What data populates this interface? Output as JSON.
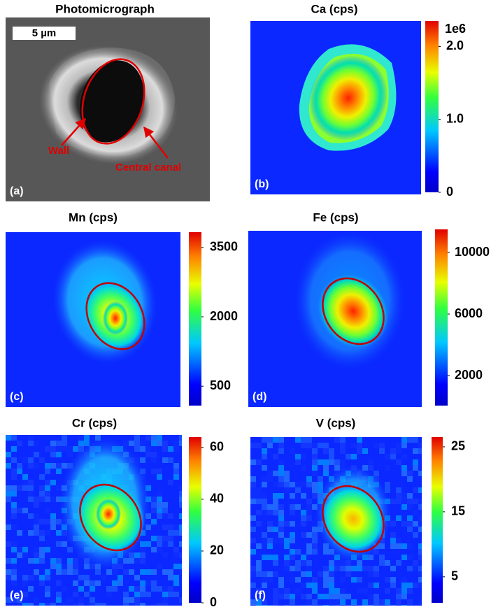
{
  "panels": [
    {
      "title": "Photomicrograph",
      "label": "(a)",
      "scale_bar": "5 µm",
      "annotations": [
        "Wall",
        "Central canal"
      ]
    },
    {
      "title": "Ca (cps)",
      "label": "(b)",
      "colorbar": {
        "exponent": "1e6",
        "lim": [
          0,
          2.35
        ],
        "ticks": [
          0,
          {
            "value": 1,
            "label": "1.0"
          },
          {
            "value": 2,
            "label": "2.0"
          }
        ]
      }
    },
    {
      "title": "Mn (cps)",
      "label": "(c)",
      "colorbar": {
        "lim": [
          80,
          3830
        ],
        "ticks": [
          500,
          2000,
          3500
        ]
      }
    },
    {
      "title": "Fe (cps)",
      "label": "(d)",
      "colorbar": {
        "lim": [
          50,
          11500
        ],
        "ticks": [
          2000,
          6000,
          10000
        ]
      }
    },
    {
      "title": "Cr (cps)",
      "label": "(e)",
      "colorbar": {
        "lim": [
          0,
          64
        ],
        "ticks": [
          0,
          20,
          40,
          60
        ]
      }
    },
    {
      "title": "V (cps)",
      "label": "(f)",
      "colorbar": {
        "lim": [
          1,
          26.5
        ],
        "ticks": [
          5,
          15,
          25
        ]
      }
    }
  ]
}
